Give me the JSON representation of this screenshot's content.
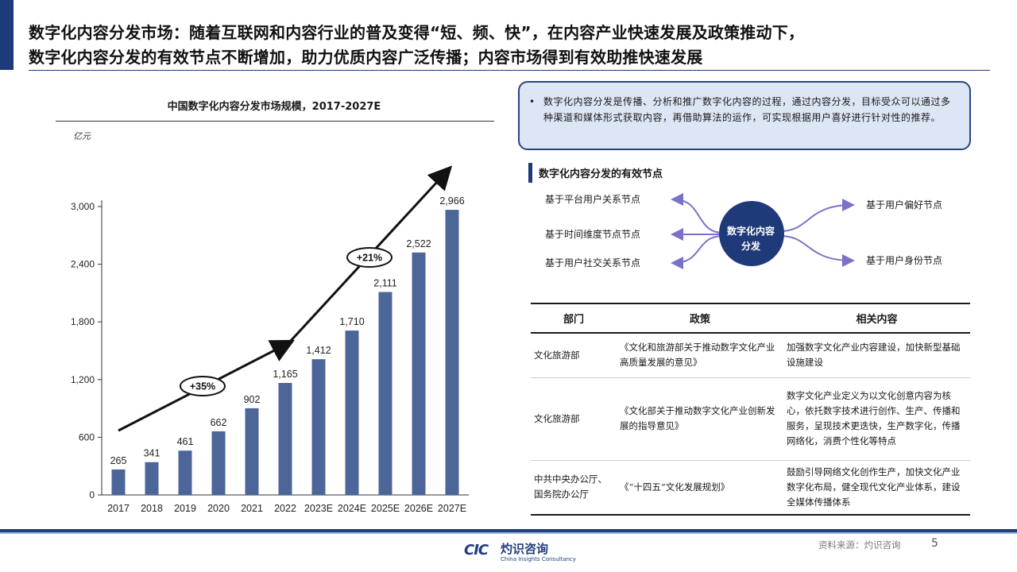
{
  "header": {
    "title_line1": "数字化内容分发市场：随着互联网和内容行业的普及变得“短、频、快”，在内容产业快速发展及政策推动下，",
    "title_line2": "数字化内容分发的有效节点不断增加，助力优质内容广泛传播；内容市场得到有效助推快速发展"
  },
  "chart_data": {
    "type": "bar",
    "title": "中国数字化内容分发市场规模，2017-2027E",
    "ylabel": "亿元",
    "xlabel": "",
    "categories": [
      "2017",
      "2018",
      "2019",
      "2020",
      "2021",
      "2022",
      "2023E",
      "2024E",
      "2025E",
      "2026E",
      "2027E"
    ],
    "values": [
      265,
      341,
      461,
      662,
      902,
      1165,
      1412,
      1710,
      2111,
      2522,
      2966
    ],
    "data_labels": [
      "265",
      "341",
      "461",
      "662",
      "902",
      "1,165",
      "1,412",
      "1,710",
      "2,111",
      "2,522",
      "2,966"
    ],
    "yticks": [
      0,
      600,
      1200,
      1800,
      2400,
      3000
    ],
    "ytick_labels": [
      "0",
      "600",
      "1,200",
      "1,800",
      "2,400",
      "3,000"
    ],
    "ylim": [
      0,
      3000
    ],
    "grid": false,
    "bar_color": "#4c6699",
    "growth_annotations": [
      "+35%",
      "+21%"
    ]
  },
  "callout": {
    "bullet": "•",
    "text": "数字化内容分发是传播、分析和推广数字化内容的过程，通过内容分发，目标受众可以通过多种渠道和媒体形式获取内容，再借助算法的运作，可实现根据用户喜好进行针对性的推荐。"
  },
  "nodes": {
    "heading": "数字化内容分发的有效节点",
    "center_line1": "数字化内容",
    "center_line2": "分发",
    "left": [
      "基于平台用户关系节点",
      "基于时间维度节点节点",
      "基于用户社交关系节点"
    ],
    "right": [
      "基于用户偏好节点",
      "基于用户身份节点"
    ]
  },
  "policy_table": {
    "headers": [
      "部门",
      "政策",
      "相关内容"
    ],
    "rows": [
      [
        "文化旅游部",
        "《文化和旅游部关于推动数字文化产业高质量发展的意见》",
        "加强数字文化产业内容建设，加快新型基础设施建设"
      ],
      [
        "文化旅游部",
        "《文化部关于推动数字文化产业创新发展的指导意见》",
        "数字文化产业定义为以文化创意内容为核心，依托数字技术进行创作、生产、传播和服务，呈现技术更迭快，生产数字化，传播网络化，消费个性化等特点"
      ],
      [
        "中共中央办公厅、国务院办公厅",
        "《“十四五”文化发展规划》",
        "鼓励引导网络文化创作生产，加快文化产业数字化布局，健全现代文化产业体系，建设全媒体传播体系"
      ]
    ]
  },
  "footer": {
    "logo_mark": "CIC",
    "logo_cn": "灼识咨询",
    "logo_en": "China Insights Consultancy",
    "source": "资料来源：灼识咨询",
    "page": "5"
  },
  "colors": {
    "accent": "#1f3a78",
    "bar": "#4c6699",
    "node_circle": "#1f3a78",
    "node_arrow": "#7a72c9",
    "callout_bg": "#dde6f5"
  }
}
